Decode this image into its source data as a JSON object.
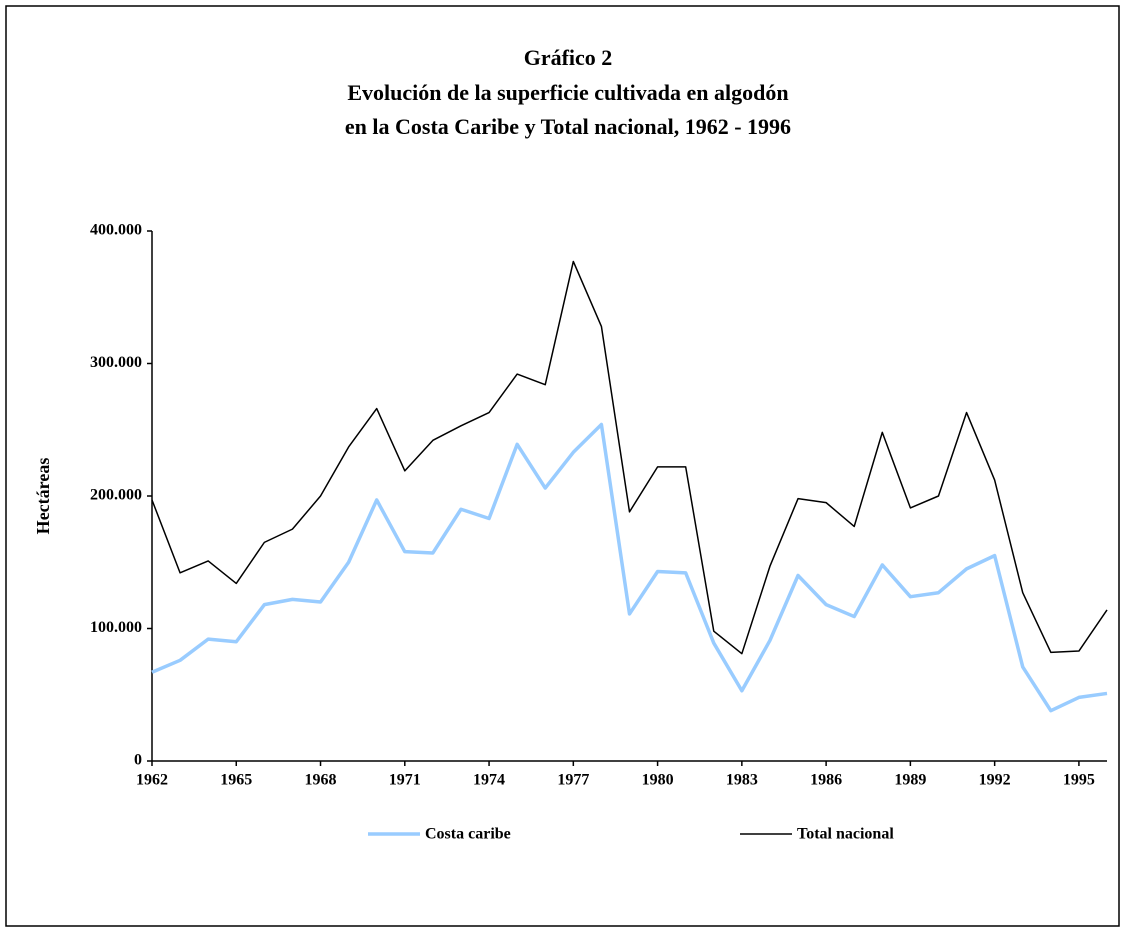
{
  "chart_data": {
    "type": "line",
    "title": "Gráfico 2",
    "subtitle": [
      "Evolución de la superficie cultivada en algodón",
      "en la Costa Caribe y Total nacional, 1962 - 1996"
    ],
    "y_label": "Hectáreas",
    "x": [
      1962,
      1963,
      1964,
      1965,
      1966,
      1967,
      1968,
      1969,
      1970,
      1971,
      1972,
      1973,
      1974,
      1975,
      1976,
      1977,
      1978,
      1979,
      1980,
      1981,
      1982,
      1983,
      1984,
      1985,
      1986,
      1987,
      1988,
      1989,
      1990,
      1991,
      1992,
      1993,
      1994,
      1995,
      1996
    ],
    "series": [
      {
        "name": "Costa caribe",
        "color": "#99ccff",
        "values": [
          67000,
          76000,
          92000,
          90000,
          118000,
          122000,
          120000,
          150000,
          197000,
          158000,
          157000,
          190000,
          183000,
          239000,
          206000,
          233000,
          254000,
          111000,
          143000,
          142000,
          89000,
          53000,
          91000,
          140000,
          118000,
          109000,
          148000,
          124000,
          127000,
          145000,
          155000,
          71000,
          38000,
          48000,
          51000
        ]
      },
      {
        "name": "Total nacional",
        "color": "#000000",
        "values": [
          197000,
          142000,
          151000,
          134000,
          165000,
          175000,
          200000,
          237000,
          266000,
          219000,
          242000,
          253000,
          263000,
          292000,
          284000,
          377000,
          328000,
          188000,
          222000,
          222000,
          98000,
          81000,
          147000,
          198000,
          195000,
          177000,
          248000,
          191000,
          200000,
          263000,
          212000,
          127000,
          82000,
          83000,
          114000
        ]
      }
    ],
    "xlim": [
      1962,
      1996
    ],
    "xticks": [
      1962,
      1965,
      1968,
      1971,
      1974,
      1977,
      1980,
      1983,
      1986,
      1989,
      1992,
      1995
    ],
    "ylim": [
      0,
      400000
    ],
    "yticks": [
      0,
      {
        "value": 100000,
        "label": "100.000"
      },
      {
        "value": 200000,
        "label": "200.000"
      },
      {
        "value": 300000,
        "label": "300.000"
      },
      {
        "value": 400000,
        "label": "400.000"
      }
    ],
    "grid": false,
    "legend": "bottom"
  }
}
